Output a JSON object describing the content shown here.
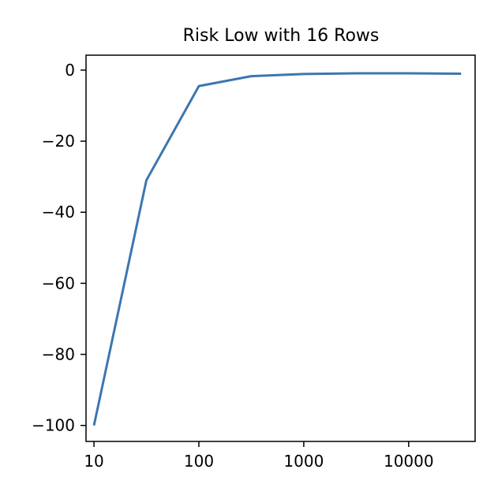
{
  "chart_data": {
    "type": "line",
    "title": "Risk Low with 16 Rows",
    "xlabel": "",
    "ylabel": "",
    "x_scale": "log",
    "xlim": [
      8.4,
      43000
    ],
    "ylim": [
      -104.5,
      4.2
    ],
    "x_ticks": [
      10,
      100,
      1000,
      10000
    ],
    "x_tick_labels": [
      "10",
      "100",
      "1000",
      "10000"
    ],
    "y_ticks": [
      0,
      -20,
      -40,
      -60,
      -80,
      -100
    ],
    "y_tick_labels": [
      "0",
      "−20",
      "−40",
      "−60",
      "−80",
      "−100"
    ],
    "grid": false,
    "legend": "none",
    "series": [
      {
        "color": "#3d76af",
        "x": [
          10,
          31.6,
          100,
          316,
          1000,
          3160,
          10000,
          31600
        ],
        "y": [
          -100,
          -31,
          -4.5,
          -1.7,
          -1.1,
          -0.9,
          -0.9,
          -1.0
        ]
      }
    ]
  }
}
